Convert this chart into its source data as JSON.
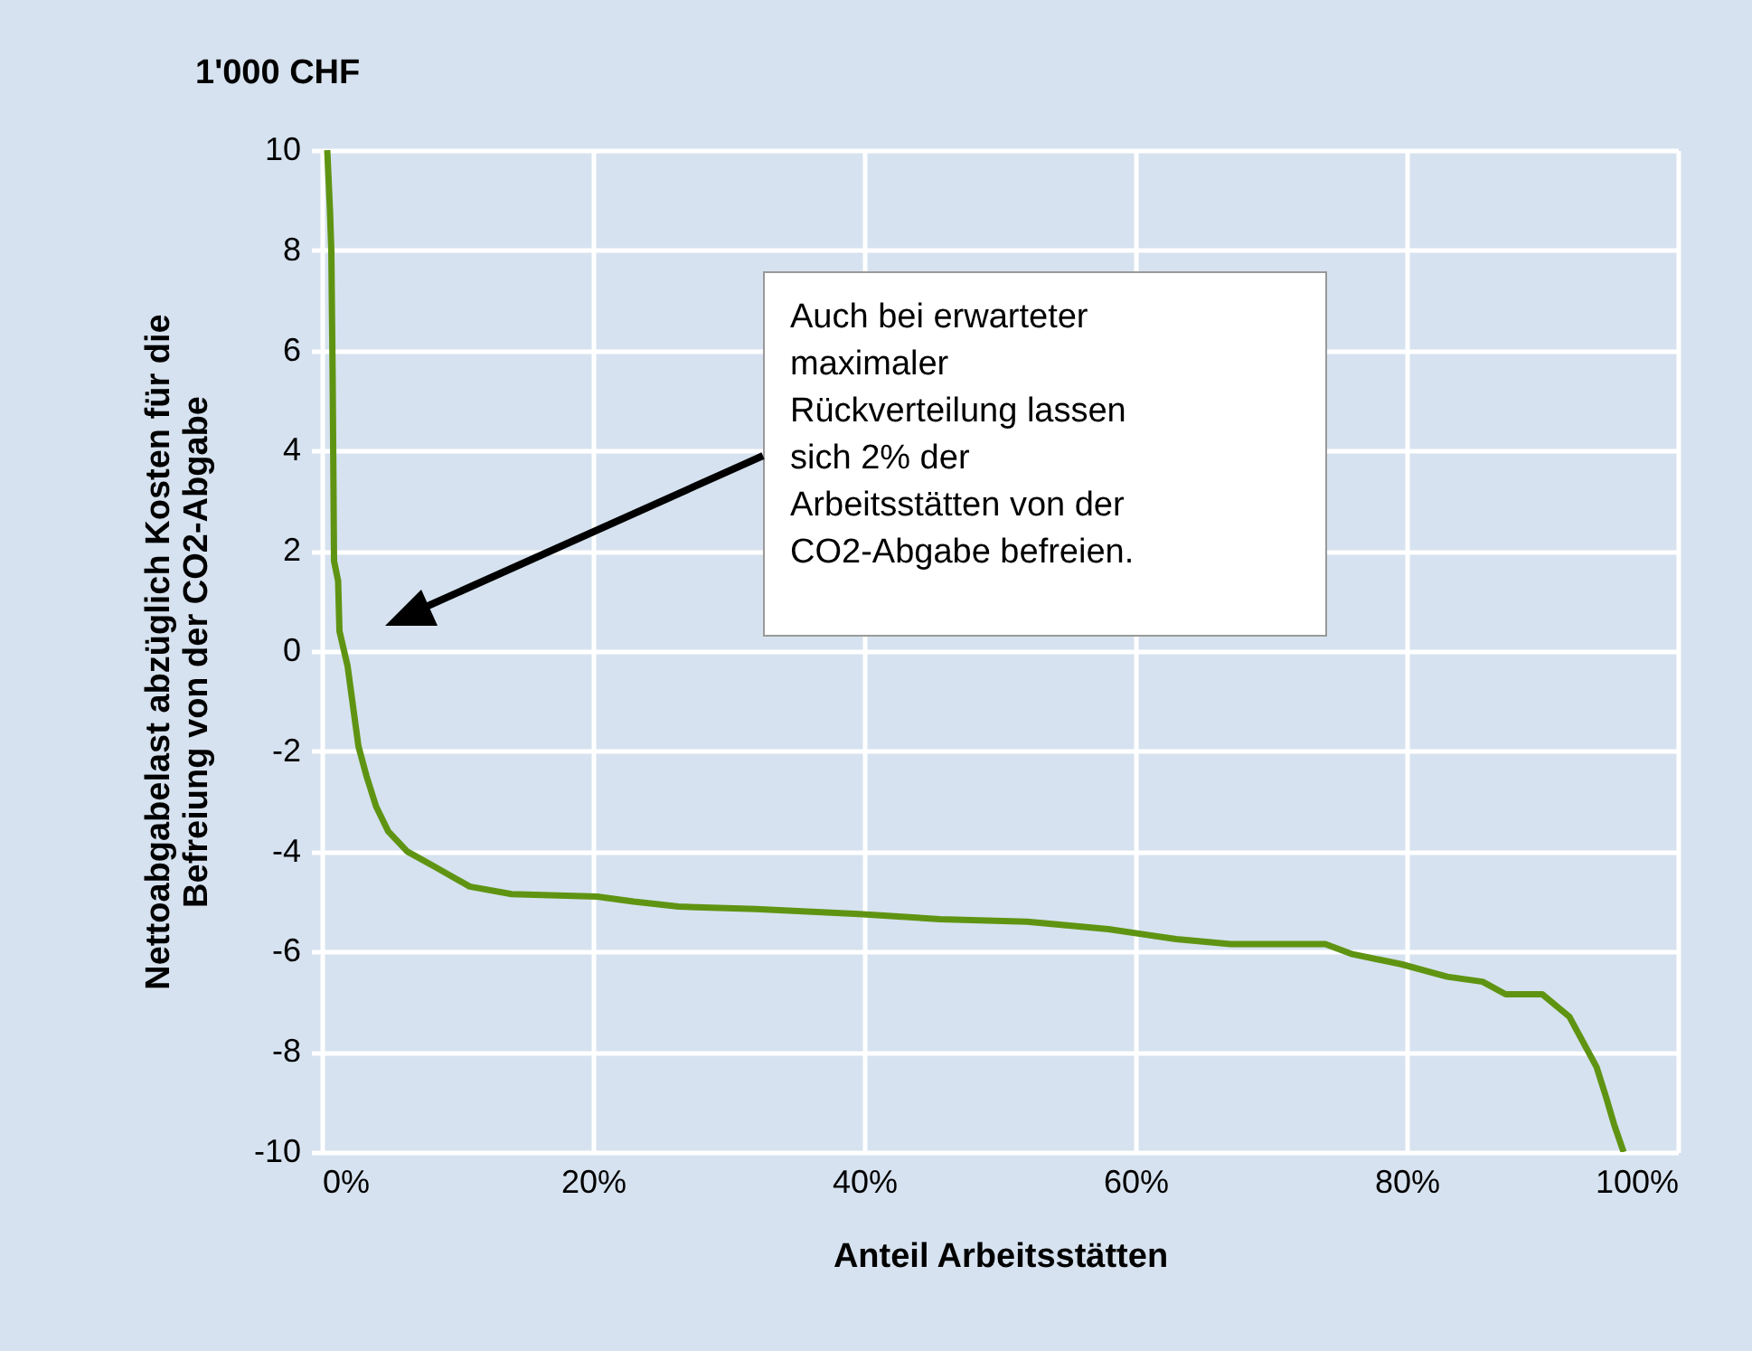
{
  "chart_data": {
    "type": "line",
    "title": "1'000 CHF",
    "xlabel": "Anteil Arbeitsstätten",
    "ylabel": "Nettoabgabelast abzüglich Kosten für die Befreiung von der CO2-Abgabe",
    "x": [
      0.4,
      0.6,
      0.7,
      0.8,
      0.9,
      1.2,
      1.3,
      1.9,
      2.3,
      2.7,
      3.3,
      4,
      4.9,
      6.3,
      8.3,
      10.9,
      14,
      20.3,
      23,
      26.3,
      32,
      39.6,
      45.6,
      52,
      58,
      63,
      67,
      74,
      76,
      79.6,
      83,
      85.6,
      87.3,
      90,
      92,
      93,
      94,
      94.7,
      95.3,
      96
    ],
    "series": [
      {
        "color": "#5f9413",
        "values": [
          10,
          8.8,
          8,
          5.4,
          1.8,
          1.4,
          0.4,
          -0.3,
          -1.1,
          -1.9,
          -2.5,
          -3.1,
          -3.6,
          -4,
          -4.3,
          -4.7,
          -4.85,
          -4.9,
          -5,
          -5.1,
          -5.15,
          -5.25,
          -5.35,
          -5.4,
          -5.55,
          -5.75,
          -5.85,
          -5.85,
          -6.05,
          -6.25,
          -6.5,
          -6.6,
          -6.85,
          -6.85,
          -7.3,
          -7.8,
          -8.3,
          -8.9,
          -9.45,
          -10
        ]
      }
    ],
    "xlim": [
      0,
      100
    ],
    "xticks": [
      {
        "value": 0,
        "label": "0%"
      },
      {
        "value": 20,
        "label": "20%"
      },
      {
        "value": 40,
        "label": "40%"
      },
      {
        "value": 60,
        "label": "60%"
      },
      {
        "value": 80,
        "label": "80%"
      },
      {
        "value": 100,
        "label": "100%"
      }
    ],
    "ylim": [
      -10,
      10
    ],
    "yticks": [
      -10,
      -8,
      -6,
      -4,
      -2,
      0,
      2,
      4,
      6,
      8,
      10
    ],
    "grid": true,
    "line_style": "solid",
    "marker": "none",
    "annotations": [
      "Auch bei erwarteter maximaler Rückverteilung lassen sich 2% der Arbeitsstätten von der CO2-Abgabe befreien."
    ]
  }
}
